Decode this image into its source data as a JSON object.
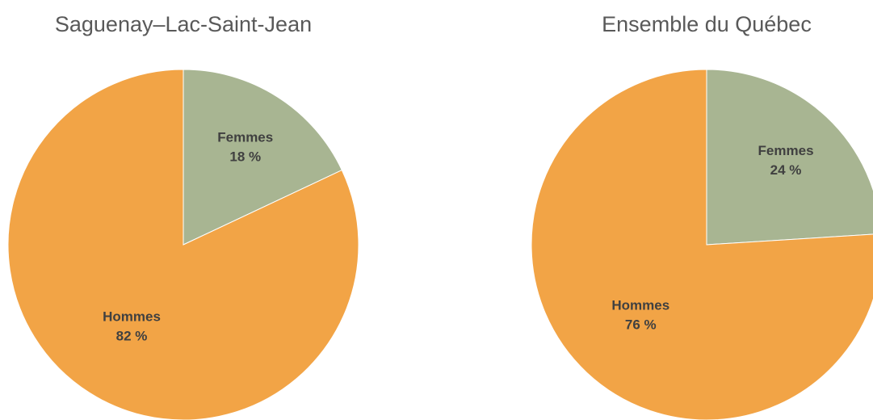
{
  "chart_data": [
    {
      "type": "pie",
      "title": "Saguenay–Lac-Saint-Jean",
      "categories": [
        "Femmes",
        "Hommes"
      ],
      "values": [
        18,
        82
      ],
      "value_labels": [
        "18 %",
        "82 %"
      ],
      "colors": [
        "#a8b592",
        "#f2a446"
      ]
    },
    {
      "type": "pie",
      "title": "Ensemble du Québec",
      "categories": [
        "Femmes",
        "Hommes"
      ],
      "values": [
        24,
        76
      ],
      "value_labels": [
        "24 %",
        "76 %"
      ],
      "colors": [
        "#a8b592",
        "#f2a446"
      ]
    }
  ]
}
